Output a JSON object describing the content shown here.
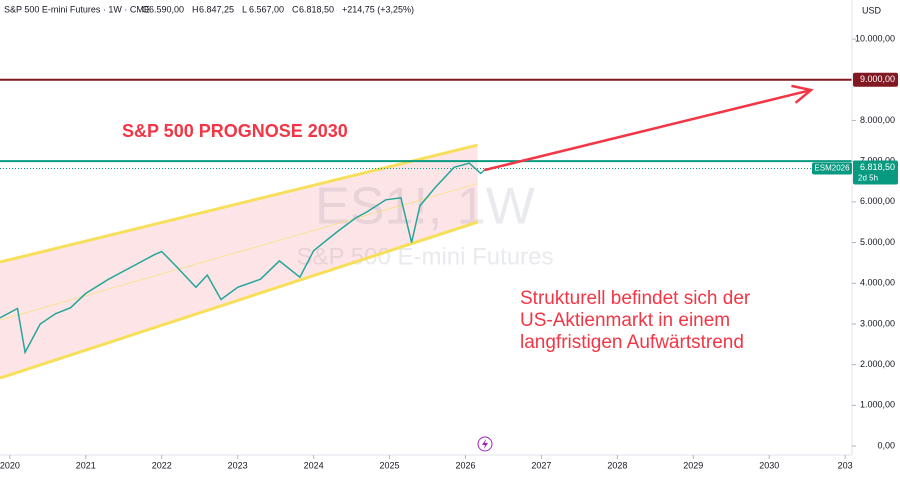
{
  "chart_data": {
    "type": "line",
    "header": {
      "symbol": "S&P 500 E-mini Futures · 1W · CME",
      "fields": [
        {
          "label": "O",
          "value": "6.590,00"
        },
        {
          "label": "H",
          "value": "6.847,25"
        },
        {
          "label": "L",
          "value": "6.567,00"
        },
        {
          "label": "C",
          "value": "6.818,50"
        }
      ],
      "change": "+214,75 (+3,25%)"
    },
    "currency": "USD",
    "title": "S&P 500 PROGNOSE 2030",
    "annotation": [
      "Strukturell befindet sich der",
      "US-Aktienmarkt in einem",
      "langfristigen Aufwärtstrend"
    ],
    "watermark": [
      "ES1!, 1W",
      "S&P 500 E-mini Futures"
    ],
    "x": [
      2019.87,
      2020.1,
      2020.2,
      2020.4,
      2020.6,
      2020.8,
      2021.0,
      2021.3,
      2021.6,
      2021.9,
      2022.0,
      2022.2,
      2022.45,
      2022.6,
      2022.78,
      2023.0,
      2023.3,
      2023.55,
      2023.82,
      2024.0,
      2024.3,
      2024.55,
      2024.7,
      2024.95,
      2025.15,
      2025.29,
      2025.4,
      2025.6,
      2025.85,
      2026.05,
      2026.2,
      2026.27
    ],
    "series": [
      {
        "name": "ESM2026",
        "color": "#26a69a",
        "values": [
          3150,
          3380,
          2300,
          3000,
          3250,
          3400,
          3750,
          4100,
          4400,
          4700,
          4780,
          4400,
          3900,
          4200,
          3600,
          3900,
          4100,
          4550,
          4150,
          4800,
          5250,
          5600,
          5750,
          6050,
          6100,
          5000,
          5900,
          6350,
          6850,
          6950,
          6700,
          6818.5
        ]
      }
    ],
    "xlim": [
      2019.87,
      2031.09
    ],
    "xticks": [
      2020,
      2021,
      2022,
      2023,
      2024,
      2025,
      2026,
      2027,
      2028,
      2029,
      2030,
      {
        "value": 2031,
        "label": "203"
      }
    ],
    "ylim": [
      -220,
      10960
    ],
    "yticks": [
      {
        "value": 0,
        "label": "0,00"
      },
      {
        "value": 1000,
        "label": "1.000,00"
      },
      {
        "value": 2000,
        "label": "2.000,00"
      },
      {
        "value": 3000,
        "label": "3.000,00"
      },
      {
        "value": 4000,
        "label": "4.000,00"
      },
      {
        "value": 5000,
        "label": "5.000,00"
      },
      {
        "value": 6000,
        "label": "6.000,00"
      },
      {
        "value": 7000,
        "label": "7.000,00"
      },
      {
        "value": 8000,
        "label": "8.000,00"
      },
      {
        "value": 10000,
        "label": "10.000,00"
      }
    ],
    "levels": [
      {
        "value": 9000,
        "color": "#801922",
        "label": "9.000,00"
      },
      {
        "value": 7000,
        "color": "#089981"
      }
    ],
    "last": {
      "value": 6818.5,
      "label": "6.818,50",
      "countdown": "2d 5h"
    },
    "channel": {
      "x": [
        2019.87,
        2026.16
      ],
      "upper": [
        4520,
        7395
      ],
      "lower": [
        1670,
        5504
      ],
      "color": "#f7df5a"
    },
    "arrow": {
      "x": [
        2026.25,
        2030.55
      ],
      "values": [
        6781,
        8747
      ],
      "color": "#f23645"
    }
  }
}
